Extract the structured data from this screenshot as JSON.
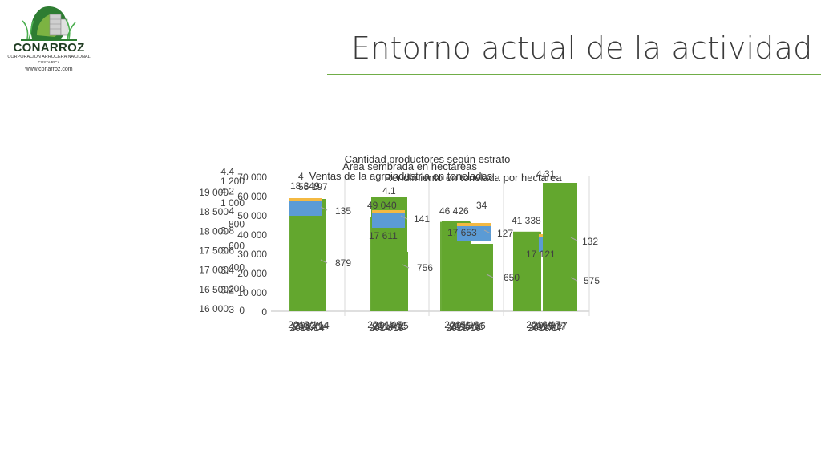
{
  "logo": {
    "brand": "CONARROZ",
    "subtitle": "CORPORACION ARROCERA NACIONAL",
    "country": "COSTA RICA",
    "website": "www.conarroz.com"
  },
  "slide": {
    "title": "Entorno actual de la actividad"
  },
  "colors": {
    "green": "#63a72e",
    "blue": "#5b9bd5",
    "gold": "#f4b942",
    "axis": "#bfbfbf",
    "rule": "#70ad47"
  },
  "chart_data": [
    {
      "type": "bar",
      "title": "Cantidad productores según estrato",
      "categories": [
        "2013/14",
        "2014/15",
        "2015/16",
        "2016/17"
      ],
      "series": [
        {
          "values": [
            879,
            756,
            650,
            575
          ]
        }
      ],
      "data_labels": [
        "879",
        "756",
        "650",
        "575"
      ],
      "ylim": [
        0,
        1200
      ],
      "y_ticks": [
        "0",
        "200",
        "400",
        "600",
        "800",
        "1 000",
        "1 200"
      ]
    },
    {
      "type": "bar",
      "title": "Área sembrada en hectáreas",
      "categories": [
        "2013/14",
        "2014/15",
        "2015/16",
        "2016/17"
      ],
      "series": [
        {
          "values": [
            55197,
            49040,
            46426,
            41338
          ]
        }
      ],
      "data_labels": [
        "55 197",
        "49 040",
        "46 426",
        "41 338"
      ],
      "ylim": [
        0,
        70000
      ],
      "y_ticks": [
        "0",
        "10 000",
        "20 000",
        "30 000",
        "40 000",
        "50 000",
        "60 000",
        "70 000"
      ]
    },
    {
      "type": "bar",
      "title": "Ventas de la agroindustria en toneladas",
      "categories": [
        "2013/14",
        "2014/15",
        "2015/16",
        "2016/17"
      ],
      "series": [
        {
          "values": [
            18849,
            17611,
            17653,
            17121
          ]
        }
      ],
      "data_labels": [
        "18 849",
        "17 611",
        "17 653",
        "17 121"
      ],
      "ylim": [
        16000,
        19000
      ],
      "y_ticks": [
        "16 000",
        "16 500",
        "17 000",
        "17 500",
        "18 000",
        "18 500",
        "19 000"
      ]
    },
    {
      "type": "bar",
      "title": "Rendimiento en tonelada por hectárea",
      "categories": [
        "2013/14",
        "2014/15",
        "2015/16",
        "2016/17"
      ],
      "series": [
        {
          "values": [
            135,
            141,
            127,
            132
          ]
        }
      ],
      "data_labels": [
        "135",
        "141",
        "127",
        "132"
      ],
      "ylim": [
        0,
        4.4
      ],
      "y_ticks": [
        "3",
        "3.2",
        "3.4",
        "3.6",
        "3.8",
        "4",
        "4.2",
        "4.4"
      ],
      "extra_labels": [
        "4",
        "4.1",
        "34",
        "4.31"
      ]
    }
  ]
}
